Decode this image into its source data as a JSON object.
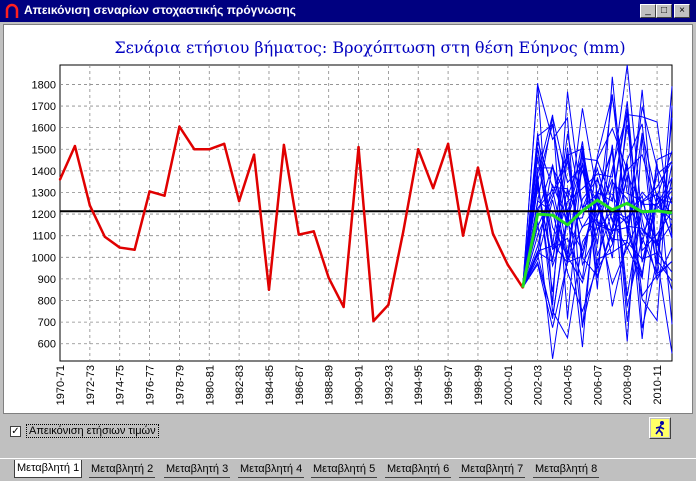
{
  "window": {
    "title": "Απεικόνιση σεναρίων στοχαστικής πρόγνωσης"
  },
  "controls": {
    "minimize": "_",
    "maximize": "□",
    "close": "×"
  },
  "options": {
    "show_annual_label": "Απεικόνιση ετήσιων τιμών",
    "show_annual_checked": "✓"
  },
  "tabs": [
    "Μεταβλητή 1",
    "Μεταβλητή 2",
    "Μεταβλητή 3",
    "Μεταβλητή 4",
    "Μεταβλητή 5",
    "Μεταβλητή 6",
    "Μεταβλητή 7",
    "Μεταβλητή 8"
  ],
  "active_tab": 0,
  "icons": {
    "app": "app-arch-icon",
    "run": "running-man-icon"
  },
  "colors": {
    "historical": "#e00000",
    "scenarios": "#0000ff",
    "mean_forecast": "#22dd22",
    "mean_line": "#000000",
    "title": "#0000c0"
  },
  "chart_data": {
    "type": "line",
    "title": "Σενάρια ετήσιου βήματος: Βροχόπτωση στη θέση Εύηνος (mm)",
    "xlabel": "",
    "ylabel": "",
    "ylim": [
      520,
      1890
    ],
    "yticks": [
      600,
      700,
      800,
      900,
      1000,
      1100,
      1200,
      1300,
      1400,
      1500,
      1600,
      1700,
      1800
    ],
    "x_tick_labels": [
      "1970-71",
      "1972-73",
      "1974-75",
      "1976-77",
      "1978-79",
      "1980-81",
      "1982-83",
      "1984-85",
      "1986-87",
      "1988-89",
      "1990-91",
      "1992-93",
      "1994-95",
      "1996-97",
      "1998-99",
      "2000-01",
      "2002-03",
      "2004-05",
      "2006-07",
      "2008-09",
      "2010-11"
    ],
    "grid": true,
    "historical": {
      "name": "",
      "years": [
        "1970-71",
        "1971-72",
        "1972-73",
        "1973-74",
        "1974-75",
        "1975-76",
        "1976-77",
        "1977-78",
        "1978-79",
        "1979-80",
        "1980-81",
        "1981-82",
        "1982-83",
        "1983-84",
        "1984-85",
        "1985-86",
        "1986-87",
        "1987-88",
        "1988-89",
        "1989-90",
        "1990-91",
        "1991-92",
        "1992-93",
        "1993-94",
        "1994-95",
        "1995-96",
        "1996-97",
        "1997-98",
        "1998-99",
        "1999-00",
        "2000-01",
        "2001-02"
      ],
      "values": [
        1360,
        1515,
        1240,
        1095,
        1045,
        1035,
        1305,
        1285,
        1605,
        1500,
        1500,
        1525,
        1260,
        1475,
        850,
        1520,
        1105,
        1120,
        905,
        770,
        1510,
        705,
        780,
        1120,
        1500,
        1320,
        1525,
        1100,
        1415,
        1110,
        965,
        860
      ]
    },
    "mean_value": 1213,
    "forecast_mean": {
      "years": [
        "2001-02",
        "2002-03",
        "2003-04",
        "2004-05",
        "2005-06",
        "2006-07",
        "2007-08",
        "2008-09",
        "2009-10",
        "2010-11",
        "2011-12"
      ],
      "values": [
        860,
        1200,
        1195,
        1150,
        1215,
        1265,
        1220,
        1250,
        1210,
        1215,
        1205
      ]
    },
    "scenario_count": 30,
    "scenario_range": [
      530,
      1890
    ]
  }
}
